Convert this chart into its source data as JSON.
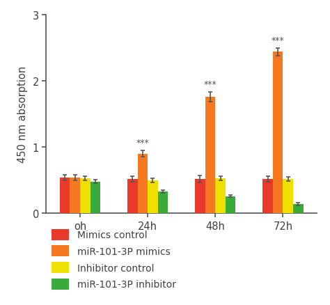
{
  "groups": [
    "oh",
    "24h",
    "48h",
    "72h"
  ],
  "series": {
    "Mimics control": {
      "values": [
        0.54,
        0.52,
        0.52,
        0.52
      ],
      "errors": [
        0.04,
        0.04,
        0.05,
        0.04
      ],
      "color": "#e8392a"
    },
    "miR-101-3P mimics": {
      "values": [
        0.54,
        0.9,
        1.76,
        2.44
      ],
      "errors": [
        0.04,
        0.05,
        0.07,
        0.06
      ],
      "color": "#f47920"
    },
    "Inhibitor control": {
      "values": [
        0.53,
        0.5,
        0.53,
        0.52
      ],
      "errors": [
        0.03,
        0.03,
        0.03,
        0.03
      ],
      "color": "#f0e000"
    },
    "miR-101-3P inhibitor": {
      "values": [
        0.48,
        0.33,
        0.26,
        0.14
      ],
      "errors": [
        0.03,
        0.02,
        0.02,
        0.02
      ],
      "color": "#3aaa3a"
    }
  },
  "significance": {
    "24h": "***",
    "48h": "***",
    "72h": "***"
  },
  "ylabel": "450 nm absorption",
  "ylim": [
    0,
    3
  ],
  "yticks": [
    0,
    1,
    2,
    3
  ],
  "bar_width": 0.15,
  "legend_order": [
    "Mimics control",
    "miR-101-3P mimics",
    "Inhibitor control",
    "miR-101-3P inhibitor"
  ],
  "background_color": "#ffffff",
  "axis_color": "#404040"
}
